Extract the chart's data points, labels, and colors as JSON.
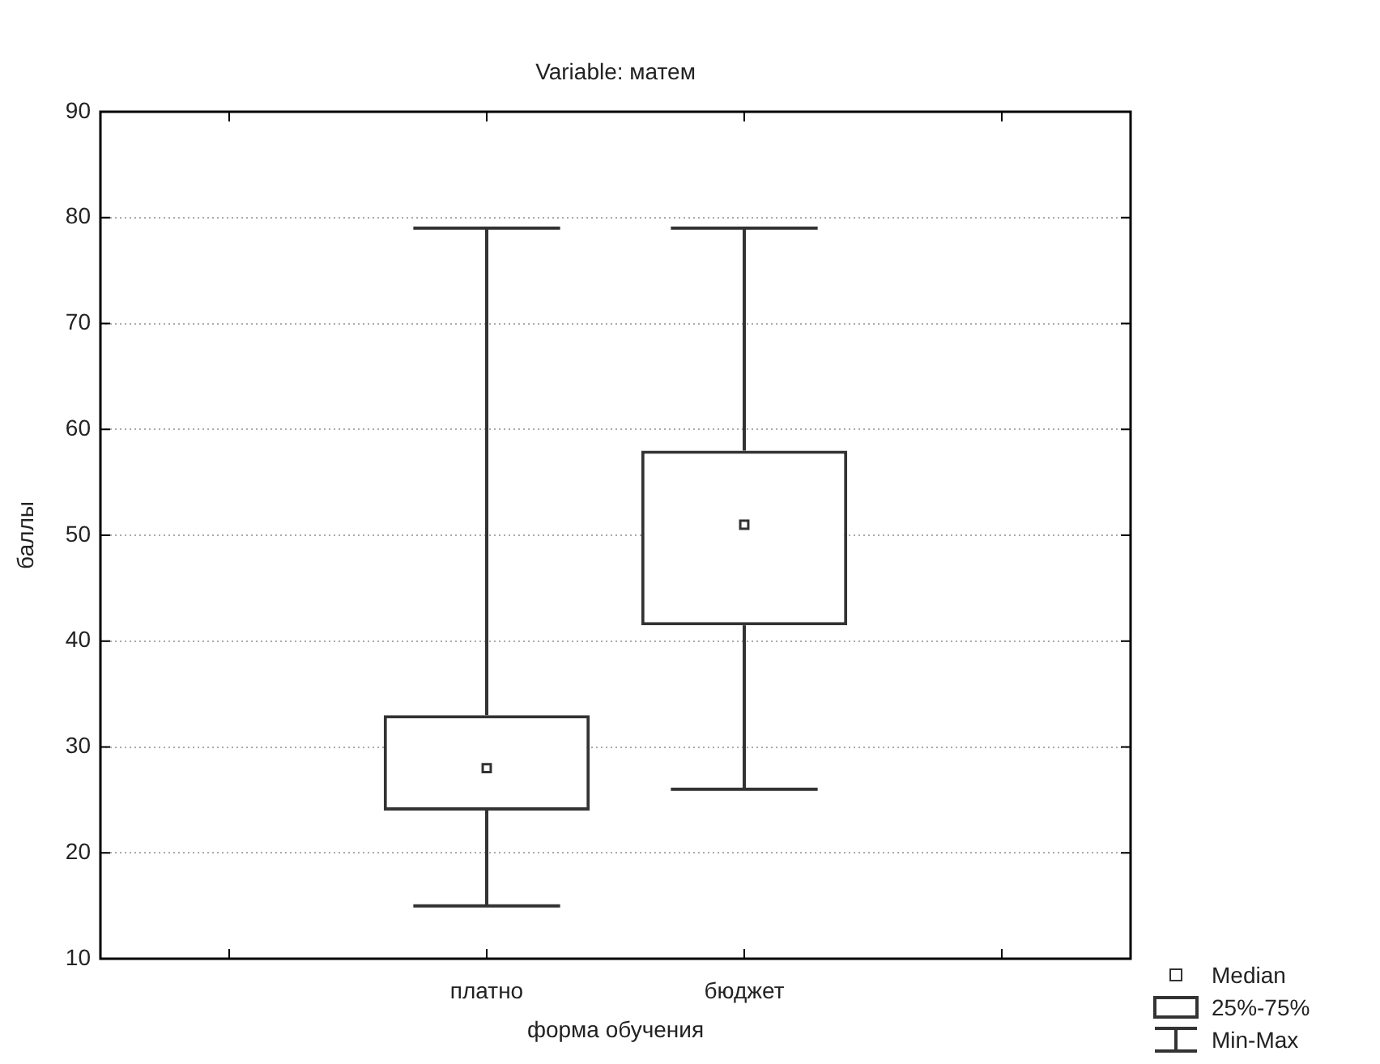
{
  "chart_data": {
    "type": "box",
    "title": "Variable: матем",
    "xlabel": "форма обучения",
    "ylabel": "баллы",
    "categories": [
      null,
      "платно",
      "бюджет",
      null
    ],
    "boxes": [
      null,
      {
        "low": 15,
        "q1": 24,
        "median": 28,
        "q3": 33,
        "high": 79
      },
      {
        "low": 26,
        "q1": 41.5,
        "median": 51,
        "q3": 58,
        "high": 79
      },
      null
    ],
    "color": "#333333",
    "ylim": [
      10,
      90
    ],
    "yticks": [
      10,
      20,
      30,
      40,
      50,
      60,
      70,
      80,
      90
    ],
    "grid": "y",
    "marker": "square",
    "annotations": [
      "Median",
      "25%-75%",
      "Min-Max"
    ]
  }
}
